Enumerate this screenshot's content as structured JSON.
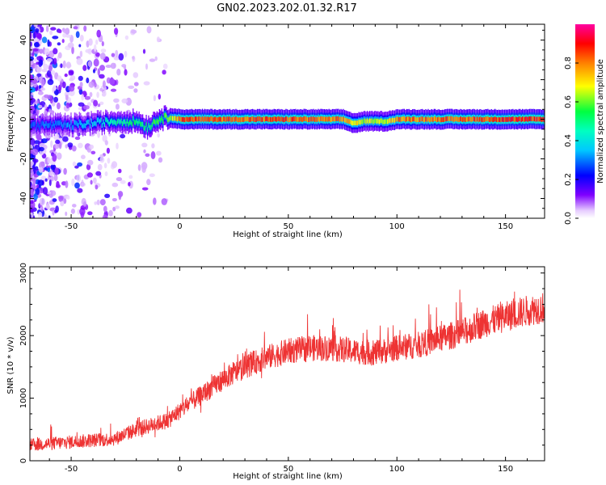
{
  "title": "GN02.2023.202.01.32.R17",
  "chart_data": [
    {
      "type": "heatmap",
      "xlabel": "Height of straight line (km)",
      "ylabel": "Frequency (Hz)",
      "xlim": [
        -69,
        168
      ],
      "ylim": [
        -50,
        48
      ],
      "x_ticks": [
        -50,
        0,
        50,
        100,
        150
      ],
      "y_ticks": [
        -40,
        -20,
        0,
        20,
        40
      ],
      "x_tick_labels": [
        "-50",
        "0",
        "50",
        "100",
        "150"
      ],
      "y_tick_labels": [
        "-40",
        "-20",
        "0",
        "20",
        "40"
      ],
      "colorbar": {
        "label": "Normalized spectral amplitude",
        "range": [
          0,
          1
        ],
        "ticks": [
          0.0,
          0.2,
          0.4,
          0.6,
          0.8
        ],
        "tick_labels": [
          "0.0",
          "0.2",
          "0.4",
          "0.6",
          "0.8"
        ],
        "colormap": [
          "#ffffff",
          "#7f00ff",
          "#0000ff",
          "#00c8ff",
          "#00ff60",
          "#ffff00",
          "#ff8000",
          "#ff0000",
          "#ff00a0"
        ]
      },
      "ridge": {
        "description_points": [
          {
            "x": -69,
            "f": -3,
            "amp": 0.3
          },
          {
            "x": -50,
            "f": -3,
            "amp": 0.35
          },
          {
            "x": -40,
            "f": -2,
            "amp": 0.4
          },
          {
            "x": -30,
            "f": -1,
            "amp": 0.5
          },
          {
            "x": -20,
            "f": -1,
            "amp": 0.55
          },
          {
            "x": -15,
            "f": -4,
            "amp": 0.55
          },
          {
            "x": -10,
            "f": 0,
            "amp": 0.6
          },
          {
            "x": -5,
            "f": 1,
            "amp": 0.65
          },
          {
            "x": 0,
            "f": 0,
            "amp": 0.9
          },
          {
            "x": 50,
            "f": 0,
            "amp": 0.9
          },
          {
            "x": 75,
            "f": 0,
            "amp": 0.85
          },
          {
            "x": 80,
            "f": -2,
            "amp": 0.75
          },
          {
            "x": 85,
            "f": -1,
            "amp": 0.7
          },
          {
            "x": 95,
            "f": -1,
            "amp": 0.7
          },
          {
            "x": 100,
            "f": 0,
            "amp": 0.85
          },
          {
            "x": 168,
            "f": 0,
            "amp": 0.95
          }
        ],
        "noise_region_x": [
          -69,
          -5
        ]
      }
    },
    {
      "type": "line",
      "xlabel": "Height of straight line (km)",
      "ylabel": "SNR (10 * v/v)",
      "xlim": [
        -69,
        168
      ],
      "ylim": [
        0,
        3100
      ],
      "x_ticks": [
        -50,
        0,
        50,
        100,
        150
      ],
      "y_ticks": [
        0,
        1000,
        2000,
        3000
      ],
      "x_tick_labels": [
        "-50",
        "0",
        "50",
        "100",
        "150"
      ],
      "y_tick_labels": [
        "0",
        "1000",
        "2000",
        "3000"
      ],
      "series_color": "#ee3333",
      "trend": {
        "x": [
          -69,
          -50,
          -30,
          -20,
          -5,
          0,
          10,
          20,
          30,
          40,
          50,
          60,
          70,
          80,
          90,
          100,
          110,
          120,
          130,
          140,
          150,
          160,
          168
        ],
        "y": [
          250,
          300,
          350,
          500,
          650,
          800,
          1050,
          1300,
          1500,
          1650,
          1750,
          1800,
          1800,
          1750,
          1720,
          1800,
          1850,
          1950,
          2050,
          2200,
          2300,
          2400,
          2450
        ]
      },
      "noise_amplitude": 250
    }
  ]
}
